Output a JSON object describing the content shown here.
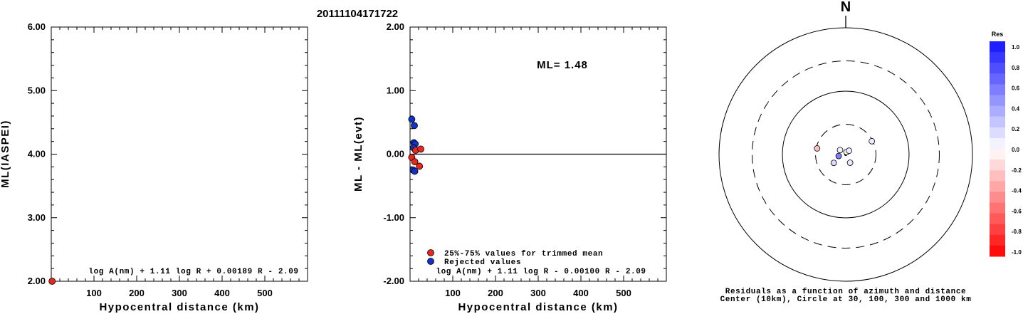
{
  "figure_title": "20111104171722",
  "colors": {
    "trimmed": "#e8281c",
    "rejected": "#1432c8",
    "axis": "#000000"
  },
  "chart_data": [
    {
      "type": "scatter",
      "xlabel": "Hypocentral distance (km)",
      "ylabel": "ML(IASPEI)",
      "xlim": [
        0,
        600
      ],
      "ylim": [
        2.0,
        6.0
      ],
      "x_ticks": [
        "100",
        "200",
        "300",
        "400",
        "500"
      ],
      "y_ticks": [
        "2.00",
        "3.00",
        "4.00",
        "5.00",
        "6.00"
      ],
      "formula": "log A(nm) + 1.11 log R + 0.00189 R - 2.09",
      "points": [
        {
          "x": 2,
          "y": 2.0,
          "group": "trimmed"
        }
      ]
    },
    {
      "type": "scatter",
      "xlabel": "Hypocentral distance (km)",
      "ylabel": "ML - ML(evt)",
      "xlim": [
        0,
        600
      ],
      "ylim": [
        -2.0,
        2.0
      ],
      "x_ticks": [
        "100",
        "200",
        "300",
        "400",
        "500"
      ],
      "y_ticks": [
        "-2.00",
        "-1.00",
        "0.00",
        "1.00",
        "2.00"
      ],
      "annotation": "ML= 1.48",
      "formula": "log A(nm) + 1.11 log R - 0.00100 R - 2.09",
      "legend": [
        "25%-75% values for trimmed mean",
        "Rejected values"
      ],
      "legend_position": "bottom-left",
      "reference_line_y": 0.0,
      "points": [
        {
          "x": 4,
          "y": 0.55,
          "group": "rejected"
        },
        {
          "x": 10,
          "y": 0.45,
          "group": "rejected"
        },
        {
          "x": 9,
          "y": 0.18,
          "group": "rejected"
        },
        {
          "x": 12,
          "y": 0.16,
          "group": "rejected"
        },
        {
          "x": 8,
          "y": 0.1,
          "group": "rejected"
        },
        {
          "x": 13,
          "y": 0.06,
          "group": "trimmed"
        },
        {
          "x": 25,
          "y": 0.08,
          "group": "trimmed"
        },
        {
          "x": 4,
          "y": -0.05,
          "group": "trimmed"
        },
        {
          "x": 11,
          "y": -0.12,
          "group": "trimmed"
        },
        {
          "x": 22,
          "y": -0.19,
          "group": "trimmed"
        },
        {
          "x": 7,
          "y": -0.25,
          "group": "rejected"
        },
        {
          "x": 11,
          "y": -0.27,
          "group": "rejected"
        }
      ]
    },
    {
      "type": "polar-scatter",
      "north_label": "N",
      "rings_km": [
        10,
        30,
        100,
        300,
        1000
      ],
      "ring_styles": [
        "solid",
        "dashed",
        "solid",
        "dashed",
        "solid"
      ],
      "caption_line1": "Residuals as a function of azimuth and distance",
      "caption_line2": "Center (10km), Circle at 30, 100, 300 and 1000 km",
      "colorbar_title": "Res",
      "colorbar_labels": [
        "1.0",
        "0.8",
        "0.6",
        "0.4",
        "0.2",
        "0.0",
        "-0.2",
        "-0.4",
        "-0.6",
        "-0.8",
        "-1.0"
      ],
      "stations": [
        {
          "azimuth_deg": 282,
          "distance_km": 29,
          "residual": -0.25
        },
        {
          "azimuth_deg": 308,
          "distance_km": 13,
          "residual": 0.06
        },
        {
          "azimuth_deg": 18,
          "distance_km": 11,
          "residual": 0.02
        },
        {
          "azimuth_deg": 41,
          "distance_km": 12,
          "residual": 0.08
        },
        {
          "azimuth_deg": 63,
          "distance_km": 29,
          "residual": 0.08
        },
        {
          "azimuth_deg": 258,
          "distance_km": 13,
          "residual": 0.55
        },
        {
          "azimuth_deg": 235,
          "distance_km": 17,
          "residual": 0.16
        },
        {
          "azimuth_deg": 152,
          "distance_km": 14,
          "residual": 0.1
        }
      ]
    }
  ]
}
